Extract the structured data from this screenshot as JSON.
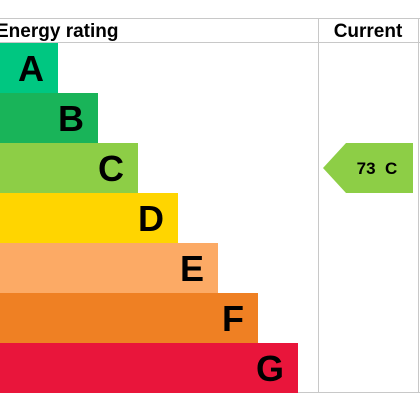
{
  "header": {
    "rating_label": "Energy rating",
    "current_label": "Current"
  },
  "chart_data": {
    "type": "bar",
    "categories": [
      "A",
      "B",
      "C",
      "D",
      "E",
      "F",
      "G"
    ],
    "colors": [
      "#00c781",
      "#19b459",
      "#8dce46",
      "#ffd500",
      "#fcaa65",
      "#ef8023",
      "#e9153b"
    ],
    "current": {
      "value": 73,
      "band": "C",
      "label": "73  C",
      "color": "#8dce46"
    }
  }
}
